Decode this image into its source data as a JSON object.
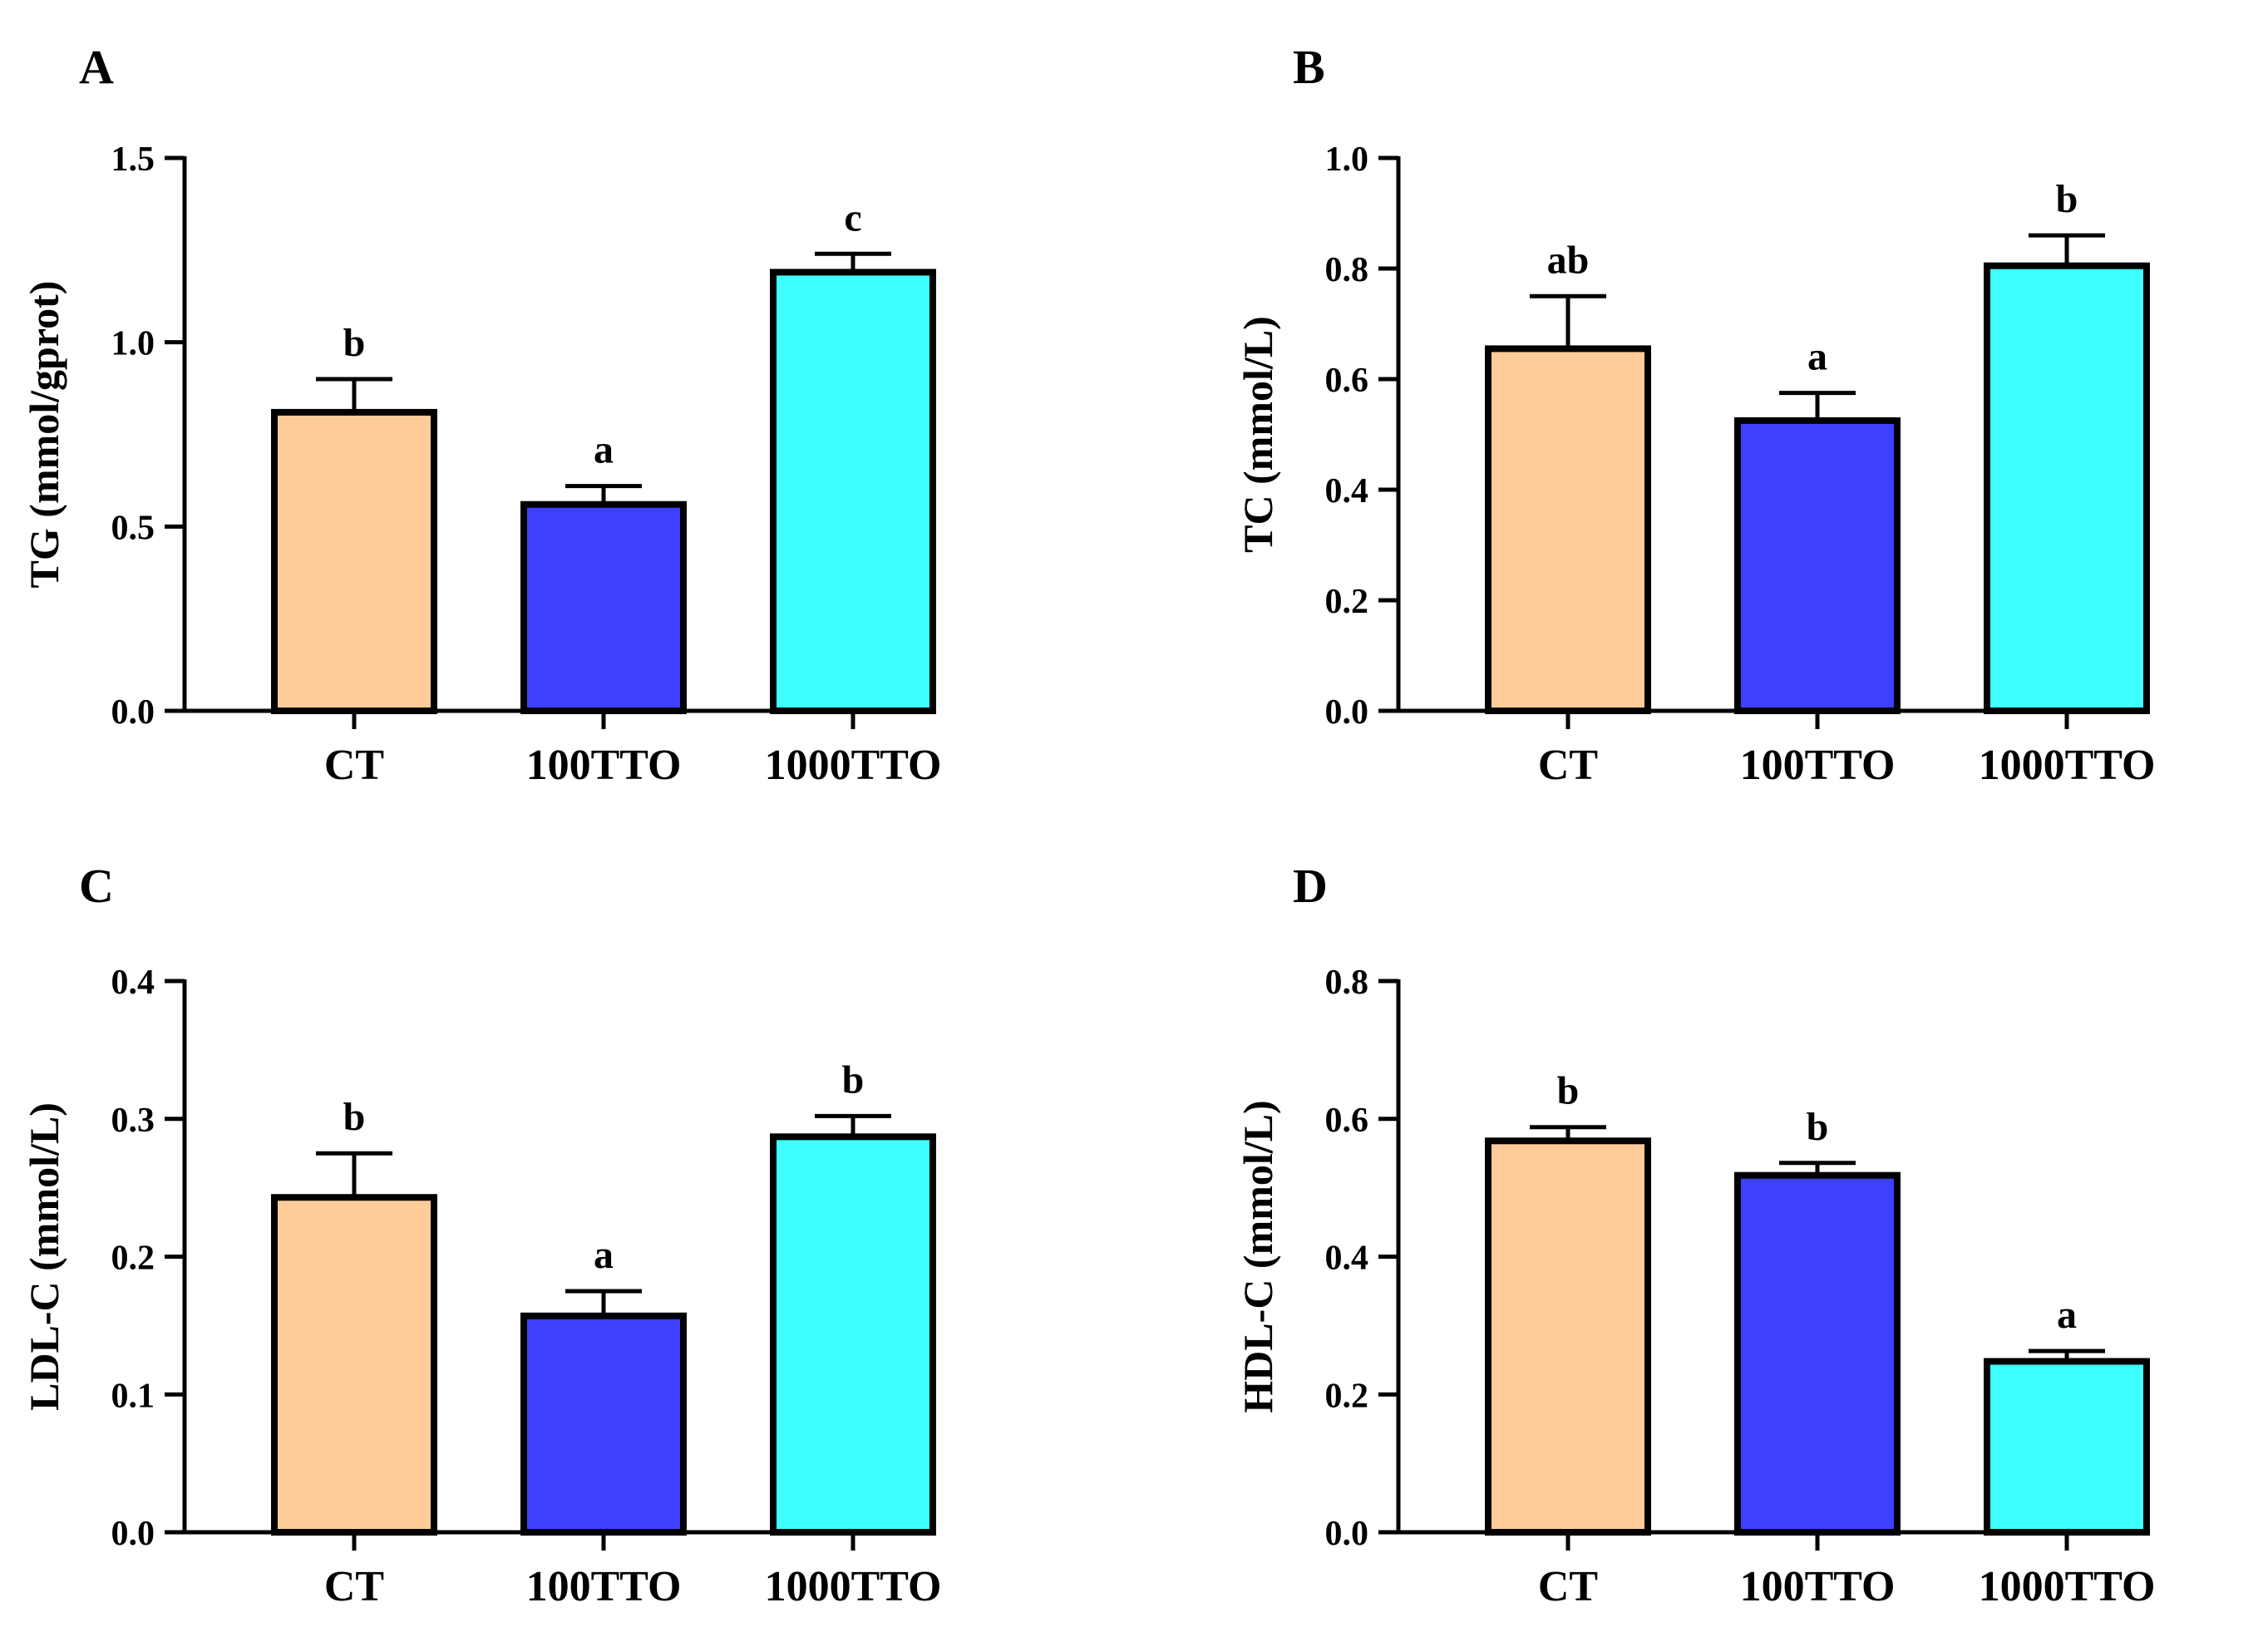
{
  "colors": {
    "CT": "#FFCC99",
    "100TTO": "#3F3FFF",
    "1000TTO": "#3FFFFF",
    "axis": "#000000"
  },
  "chart_data": [
    {
      "panel": "A",
      "type": "bar",
      "categories": [
        "CT",
        "100TTO",
        "1000TTO"
      ],
      "values": [
        0.81,
        0.56,
        1.19
      ],
      "errors": [
        0.09,
        0.05,
        0.05
      ],
      "letters": [
        "b",
        "a",
        "c"
      ],
      "ylabel": "TG (mmol/gprot)",
      "ylim": [
        0,
        1.5
      ],
      "ticks": [
        "0.0",
        "0.5",
        "1.0",
        "1.5"
      ]
    },
    {
      "panel": "B",
      "type": "bar",
      "categories": [
        "CT",
        "100TTO",
        "1000TTO"
      ],
      "values": [
        0.655,
        0.525,
        0.805
      ],
      "errors": [
        0.095,
        0.05,
        0.055
      ],
      "letters": [
        "ab",
        "a",
        "b"
      ],
      "ylabel": "TC (mmol/L)",
      "ylim": [
        0,
        1.0
      ],
      "ticks": [
        "0.0",
        "0.2",
        "0.4",
        "0.6",
        "0.8",
        "1.0"
      ]
    },
    {
      "panel": "C",
      "type": "bar",
      "categories": [
        "CT",
        "100TTO",
        "1000TTO"
      ],
      "values": [
        0.243,
        0.157,
        0.287
      ],
      "errors": [
        0.032,
        0.018,
        0.015
      ],
      "letters": [
        "b",
        "a",
        "b"
      ],
      "ylabel": "LDL-C (mmol/L)",
      "ylim": [
        0,
        0.4
      ],
      "ticks": [
        "0.0",
        "0.1",
        "0.2",
        "0.3",
        "0.4"
      ]
    },
    {
      "panel": "D",
      "type": "bar",
      "categories": [
        "CT",
        "100TTO",
        "1000TTO"
      ],
      "values": [
        0.568,
        0.518,
        0.248
      ],
      "errors": [
        0.02,
        0.018,
        0.015
      ],
      "letters": [
        "b",
        "b",
        "a"
      ],
      "ylabel": "HDL-C (mmol/L)",
      "ylim": [
        0,
        0.8
      ],
      "ticks": [
        "0.0",
        "0.2",
        "0.4",
        "0.6",
        "0.8"
      ]
    }
  ]
}
